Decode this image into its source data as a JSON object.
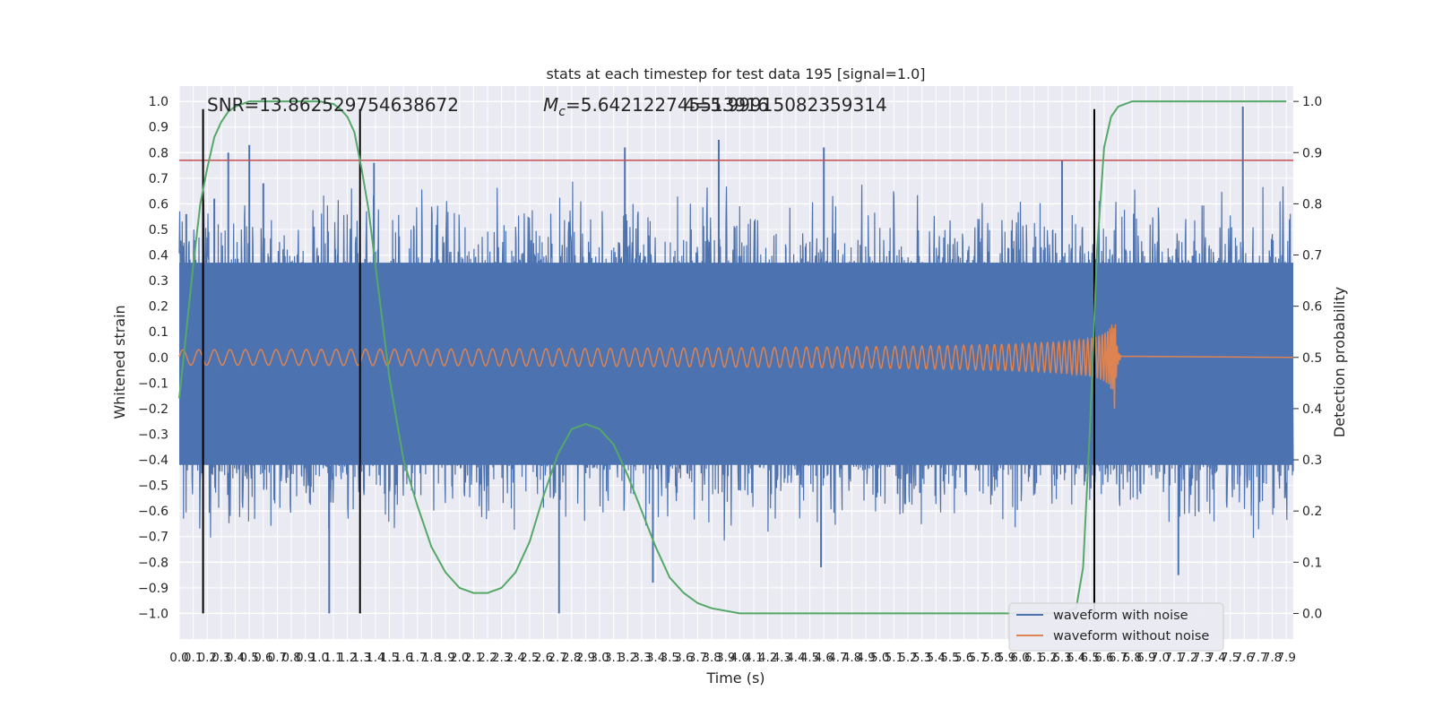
{
  "chart_data": {
    "type": "line",
    "title": "stats at each timestep for test data 195 [signal=1.0]",
    "xlabel": "Time (s)",
    "ylabel": "Whitened strain",
    "ylabel_right": "Detection probability",
    "xlim": [
      0.0,
      7.95
    ],
    "ylim": [
      -1.1,
      1.06
    ],
    "ylim_right": [
      -0.05,
      1.03
    ],
    "x_ticks": [
      "0.0",
      "0.1",
      "0.2",
      "0.3",
      "0.4",
      "0.5",
      "0.6",
      "0.7",
      "0.8",
      "0.9",
      "1.0",
      "1.1",
      "1.2",
      "1.3",
      "1.4",
      "1.5",
      "1.6",
      "1.7",
      "1.8",
      "1.9",
      "2.0",
      "2.1",
      "2.2",
      "2.3",
      "2.4",
      "2.5",
      "2.6",
      "2.7",
      "2.8",
      "2.9",
      "3.0",
      "3.1",
      "3.2",
      "3.3",
      "3.4",
      "3.5",
      "3.6",
      "3.7",
      "3.8",
      "3.9",
      "4.0",
      "4.1",
      "4.2",
      "4.3",
      "4.4",
      "4.5",
      "4.6",
      "4.7",
      "4.8",
      "4.9",
      "5.0",
      "5.1",
      "5.2",
      "5.3",
      "5.4",
      "5.5",
      "5.6",
      "5.7",
      "5.8",
      "5.9",
      "6.0",
      "6.1",
      "6.2",
      "6.3",
      "6.4",
      "6.5",
      "6.6",
      "6.7",
      "6.8",
      "6.9",
      "7.0",
      "7.1",
      "7.2",
      "7.3",
      "7.4",
      "7.5",
      "7.6",
      "7.7",
      "7.8",
      "7.9"
    ],
    "y_ticks": [
      "1.0",
      "0.9",
      "0.8",
      "0.7",
      "0.6",
      "0.5",
      "0.4",
      "0.3",
      "0.2",
      "0.1",
      "0.0",
      "−0.1",
      "−0.2",
      "−0.3",
      "−0.4",
      "−0.5",
      "−0.6",
      "−0.7",
      "−0.8",
      "−0.9",
      "−1.0"
    ],
    "y_ticks_right": [
      "1.0",
      "0.9",
      "0.8",
      "0.7",
      "0.6",
      "0.5",
      "0.4",
      "0.3",
      "0.2",
      "0.1",
      "0.0"
    ],
    "annotations": {
      "snr": "SNR=13.862529754638672",
      "mc_symbol": "M",
      "mc_sub": "c",
      "mc_value": "=5.642122745513916",
      "mc_overlap": "4=5.99915082359314"
    },
    "threshold": {
      "value": 0.77,
      "color": "#c44e52"
    },
    "vertical_markers": [
      0.17,
      1.29,
      6.53
    ],
    "series": [
      {
        "name": "waveform with noise",
        "color": "#4c72b0",
        "noise_envelope_upper": 0.37,
        "noise_envelope_lower": -0.42,
        "peaks": [
          [
            0.05,
            0.56
          ],
          [
            0.25,
            0.62
          ],
          [
            0.35,
            0.8
          ],
          [
            0.5,
            0.83
          ],
          [
            0.6,
            0.68
          ],
          [
            1.07,
            -1.0
          ],
          [
            1.39,
            0.76
          ],
          [
            2.71,
            -1.0
          ],
          [
            3.18,
            0.82
          ],
          [
            3.38,
            -0.88
          ],
          [
            3.85,
            0.85
          ],
          [
            4.58,
            -0.82
          ],
          [
            4.6,
            0.82
          ],
          [
            6.3,
            0.77
          ],
          [
            7.59,
            0.98
          ],
          [
            7.13,
            -0.85
          ]
        ]
      },
      {
        "name": "waveform without noise",
        "color": "#dd8452",
        "amplitude_start": 0.03,
        "amplitude_peak": 0.3,
        "merger_time": 6.67,
        "ringdown_end": 6.72
      }
    ],
    "detection_probability": {
      "color": "#55a868",
      "x": [
        0.0,
        0.1,
        0.15,
        0.2,
        0.25,
        0.3,
        0.35,
        0.4,
        0.5,
        0.6,
        0.7,
        0.8,
        0.9,
        1.0,
        1.1,
        1.15,
        1.2,
        1.25,
        1.3,
        1.35,
        1.4,
        1.45,
        1.5,
        1.55,
        1.6,
        1.7,
        1.8,
        1.9,
        2.0,
        2.1,
        2.2,
        2.3,
        2.4,
        2.5,
        2.6,
        2.7,
        2.8,
        2.9,
        3.0,
        3.1,
        3.2,
        3.3,
        3.4,
        3.5,
        3.6,
        3.7,
        3.8,
        4.0,
        4.5,
        5.0,
        5.5,
        6.0,
        6.3,
        6.4,
        6.45,
        6.5,
        6.55,
        6.6,
        6.65,
        6.7,
        6.8,
        7.0,
        7.5,
        7.9
      ],
      "y": [
        0.42,
        0.68,
        0.8,
        0.87,
        0.93,
        0.96,
        0.98,
        0.99,
        1.0,
        1.0,
        1.0,
        1.0,
        1.0,
        1.0,
        0.995,
        0.985,
        0.97,
        0.94,
        0.87,
        0.79,
        0.68,
        0.57,
        0.46,
        0.38,
        0.3,
        0.21,
        0.13,
        0.08,
        0.05,
        0.04,
        0.04,
        0.05,
        0.08,
        0.14,
        0.23,
        0.31,
        0.36,
        0.37,
        0.36,
        0.33,
        0.27,
        0.2,
        0.13,
        0.07,
        0.04,
        0.02,
        0.01,
        0.0,
        0.0,
        0.0,
        0.0,
        0.0,
        0.0,
        0.01,
        0.09,
        0.37,
        0.71,
        0.91,
        0.97,
        0.99,
        1.0,
        1.0,
        1.0,
        1.0
      ]
    },
    "legend": {
      "placement": "lower-right",
      "entries": [
        "waveform with noise",
        "waveform without noise"
      ]
    },
    "grid": true
  }
}
